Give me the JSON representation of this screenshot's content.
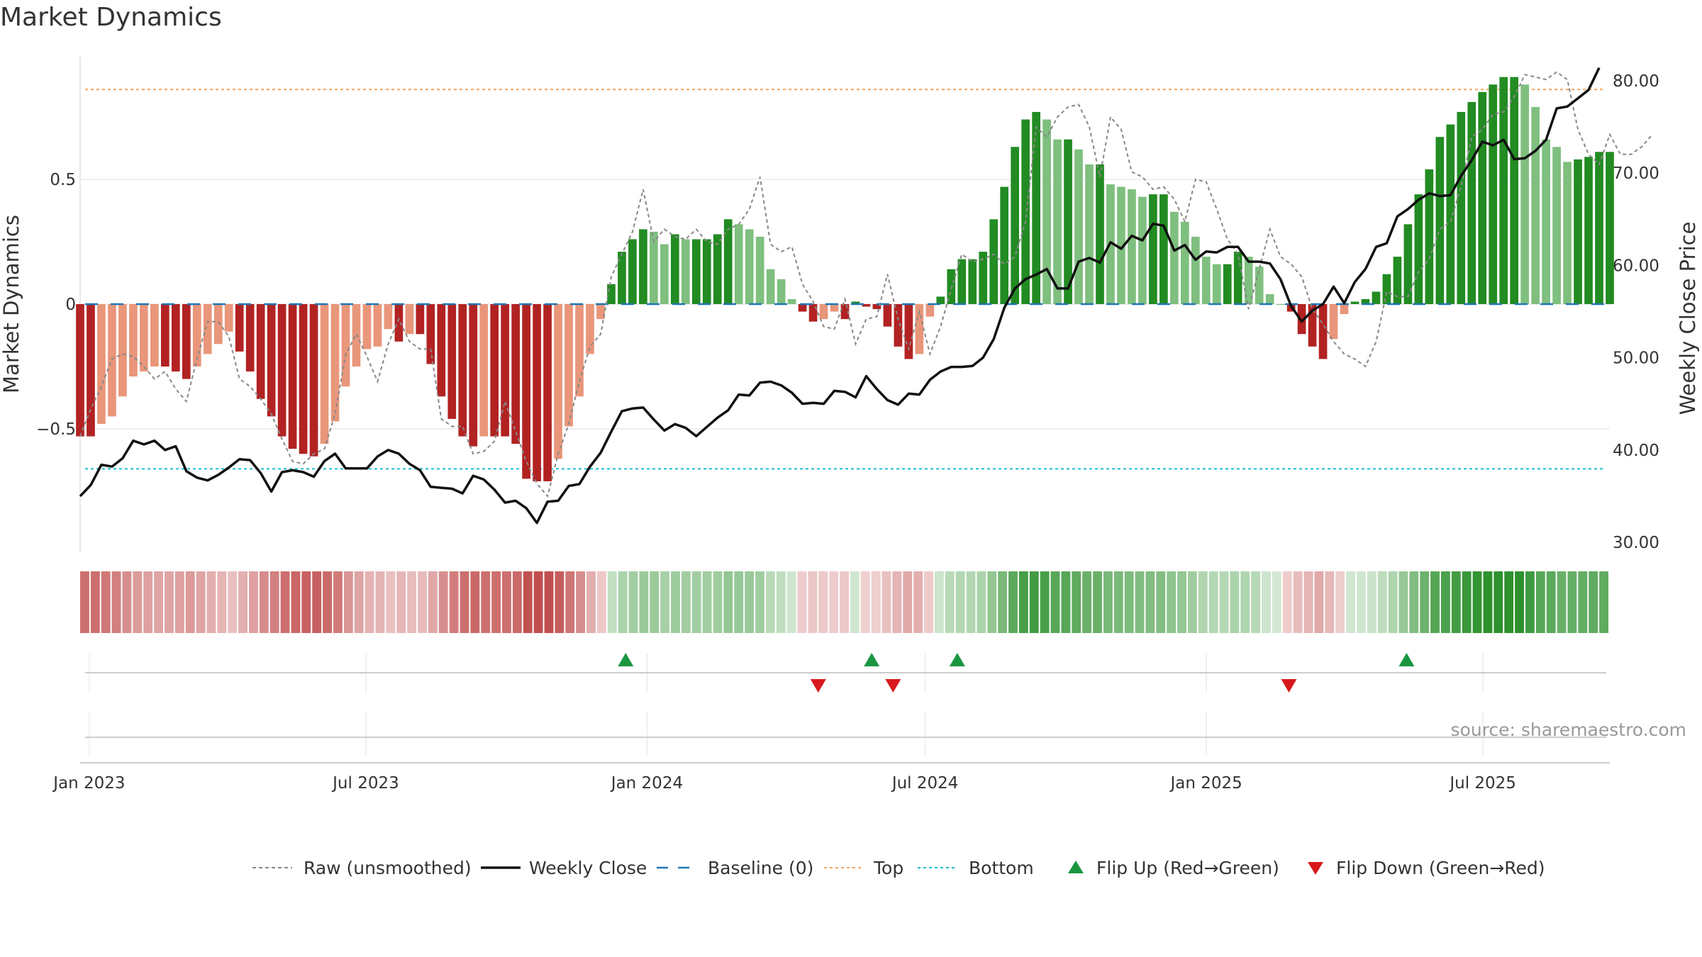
{
  "chart_data": {
    "type": "bar",
    "title": "Market Dynamics",
    "ylabel_left": "Market Dynamics",
    "ylabel_right": "Weekly Close Price",
    "source_text": "source: sharemaestro.com",
    "x_start": "2022-12-26",
    "x_end": "2025-09-22",
    "x_ticks": [
      {
        "label": "Jan 2023",
        "date": "2023-01-01"
      },
      {
        "label": "Jul 2023",
        "date": "2023-07-01"
      },
      {
        "label": "Jan 2024",
        "date": "2024-01-01"
      },
      {
        "label": "Jul 2024",
        "date": "2024-07-01"
      },
      {
        "label": "Jan 2025",
        "date": "2025-01-01"
      },
      {
        "label": "Jul 2025",
        "date": "2025-07-01"
      }
    ],
    "y_left_ticks": [
      {
        "label": "0.5",
        "value": 0.5
      },
      {
        "label": "0",
        "value": 0
      },
      {
        "label": "−0.5",
        "value": -0.5
      }
    ],
    "y_left_range": [
      -0.98,
      0.98
    ],
    "y_right_ticks": [
      {
        "label": "30.00",
        "value": 30
      },
      {
        "label": "40.00",
        "value": 40
      },
      {
        "label": "50.00",
        "value": 50
      },
      {
        "label": "60.00",
        "value": 60
      },
      {
        "label": "70.00",
        "value": 70
      },
      {
        "label": "80.00",
        "value": 80
      }
    ],
    "y_right_range": [
      29.0,
      82.6
    ],
    "top_line": 0.86,
    "bottom_line": -0.66,
    "baseline": 0,
    "smoothed": [
      -0.53,
      -0.53,
      -0.48,
      -0.45,
      -0.37,
      -0.29,
      -0.27,
      -0.25,
      -0.25,
      -0.27,
      -0.3,
      -0.25,
      -0.2,
      -0.16,
      -0.11,
      -0.19,
      -0.27,
      -0.38,
      -0.45,
      -0.53,
      -0.58,
      -0.6,
      -0.61,
      -0.56,
      -0.47,
      -0.33,
      -0.25,
      -0.18,
      -0.17,
      -0.1,
      -0.15,
      -0.12,
      -0.12,
      -0.24,
      -0.37,
      -0.46,
      -0.53,
      -0.57,
      -0.53,
      -0.53,
      -0.53,
      -0.56,
      -0.7,
      -0.71,
      -0.71,
      -0.62,
      -0.49,
      -0.37,
      -0.2,
      -0.06,
      0.08,
      0.21,
      0.26,
      0.3,
      0.29,
      0.24,
      0.28,
      0.26,
      0.26,
      0.26,
      0.28,
      0.34,
      0.32,
      0.3,
      0.27,
      0.14,
      0.1,
      0.02,
      -0.03,
      -0.07,
      -0.06,
      -0.03,
      -0.06,
      0.01,
      -0.01,
      -0.02,
      -0.09,
      -0.17,
      -0.22,
      -0.2,
      -0.05,
      0.03,
      0.14,
      0.18,
      0.18,
      0.21,
      0.34,
      0.47,
      0.63,
      0.74,
      0.77,
      0.74,
      0.66,
      0.66,
      0.62,
      0.56,
      0.56,
      0.48,
      0.47,
      0.46,
      0.43,
      0.44,
      0.44,
      0.37,
      0.33,
      0.27,
      0.19,
      0.16,
      0.16,
      0.21,
      0.19,
      0.15,
      0.04,
      0,
      -0.03,
      -0.12,
      -0.17,
      -0.22,
      -0.14,
      -0.04,
      0.01,
      0.02,
      0.05,
      0.12,
      0.19,
      0.32,
      0.44,
      0.54,
      0.67,
      0.72,
      0.77,
      0.81,
      0.85,
      0.88,
      0.91,
      0.91,
      0.88,
      0.79,
      0.66,
      0.63,
      0.57,
      0.58,
      0.59,
      0.61,
      0.61
    ],
    "raw": [
      -0.53,
      -0.42,
      -0.33,
      -0.22,
      -0.2,
      -0.21,
      -0.25,
      -0.3,
      -0.27,
      -0.34,
      -0.39,
      -0.22,
      -0.07,
      -0.07,
      -0.13,
      -0.3,
      -0.33,
      -0.38,
      -0.44,
      -0.54,
      -0.63,
      -0.64,
      -0.6,
      -0.58,
      -0.44,
      -0.2,
      -0.12,
      -0.21,
      -0.31,
      -0.16,
      -0.06,
      -0.15,
      -0.18,
      -0.18,
      -0.46,
      -0.49,
      -0.49,
      -0.6,
      -0.59,
      -0.55,
      -0.39,
      -0.51,
      -0.63,
      -0.72,
      -0.77,
      -0.6,
      -0.48,
      -0.31,
      -0.17,
      -0.12,
      0.11,
      0.2,
      0.29,
      0.46,
      0.25,
      0.3,
      0.27,
      0.26,
      0.3,
      0.25,
      0.24,
      0.3,
      0.32,
      0.38,
      0.51,
      0.24,
      0.21,
      0.23,
      0.08,
      0.01,
      -0.09,
      -0.1,
      0.02,
      -0.16,
      -0.06,
      -0.05,
      0.12,
      -0.06,
      -0.18,
      -0.03,
      -0.2,
      -0.09,
      0.06,
      0.2,
      0.17,
      0.18,
      0.2,
      0.16,
      0.19,
      0.33,
      0.71,
      0.67,
      0.75,
      0.79,
      0.8,
      0.71,
      0.51,
      0.75,
      0.7,
      0.53,
      0.51,
      0.46,
      0.47,
      0.42,
      0.33,
      0.5,
      0.49,
      0.38,
      0.26,
      0.2,
      -0.02,
      0.14,
      0.3,
      0.19,
      0.16,
      0.11,
      -0.02,
      -0.08,
      -0.15,
      -0.2,
      -0.22,
      -0.25,
      -0.15,
      0.05,
      0.03,
      0.03,
      0.13,
      0.18,
      0.3,
      0.33,
      0.47,
      0.67,
      0.7,
      0.76,
      0.77,
      0.83,
      0.92,
      0.91,
      0.9,
      0.93,
      0.9,
      0.7,
      0.6,
      0.56,
      0.68,
      0.6,
      0.6,
      0.63,
      0.68
    ],
    "close": [
      35.0,
      36.2,
      38.4,
      38.2,
      39.1,
      41.0,
      40.6,
      41.0,
      40.0,
      40.4,
      37.7,
      37.0,
      36.7,
      37.3,
      38.1,
      39.0,
      38.9,
      37.5,
      35.5,
      37.6,
      37.8,
      37.6,
      37.1,
      38.8,
      39.6,
      38.0,
      38.0,
      38.0,
      39.3,
      40.0,
      39.6,
      38.5,
      37.8,
      36.0,
      35.9,
      35.8,
      35.3,
      37.2,
      36.8,
      35.7,
      34.3,
      34.5,
      33.7,
      32.1,
      34.4,
      34.5,
      36.1,
      36.3,
      38.2,
      39.7,
      42.0,
      44.2,
      44.5,
      44.6,
      43.3,
      42.1,
      42.8,
      42.4,
      41.5,
      42.5,
      43.5,
      44.3,
      46.0,
      45.9,
      47.3,
      47.4,
      47.0,
      46.2,
      45.0,
      45.1,
      45.0,
      46.4,
      46.3,
      45.7,
      48.0,
      46.6,
      45.4,
      44.9,
      46.1,
      46.0,
      47.6,
      48.5,
      49.0,
      49.0,
      49.1,
      50.0,
      52.0,
      55.4,
      57.5,
      58.5,
      59.0,
      59.6,
      57.5,
      57.5,
      60.4,
      60.8,
      60.3,
      62.5,
      61.8,
      63.2,
      62.7,
      64.5,
      64.3,
      61.6,
      62.2,
      60.6,
      61.5,
      61.4,
      62.0,
      62.0,
      60.4,
      60.4,
      60.2,
      58.5,
      55.6,
      53.9,
      55.1,
      55.8,
      57.7,
      55.9,
      58.2,
      59.6,
      62.0,
      62.4,
      65.3,
      66.1,
      67.1,
      67.8,
      67.5,
      67.6,
      69.7,
      71.4,
      73.4,
      73.0,
      73.6,
      71.5,
      71.6,
      72.4,
      73.6,
      77.0,
      77.2,
      78.1,
      79.0,
      81.4
    ],
    "flip_up": [
      {
        "date": "2023-12-18"
      },
      {
        "date": "2024-05-27"
      },
      {
        "date": "2024-07-22"
      },
      {
        "date": "2025-05-12"
      }
    ],
    "flip_down": [
      {
        "date": "2024-04-22"
      },
      {
        "date": "2024-06-10"
      },
      {
        "date": "2025-02-24"
      }
    ],
    "legend": [
      {
        "label": "Raw (unsmoothed)",
        "style": "dotted-gray"
      },
      {
        "label": "Weekly Close",
        "style": "solid-black"
      },
      {
        "label": "Baseline (0)",
        "style": "dashed-blue"
      },
      {
        "label": "Top",
        "style": "dotted-orange"
      },
      {
        "label": "Bottom",
        "style": "dotted-cyan"
      },
      {
        "label": "Flip Up (Red→Green)",
        "style": "triangle-up-green"
      },
      {
        "label": "Flip Down (Green→Red)",
        "style": "triangle-down-red"
      }
    ],
    "colors": {
      "strong_red": "#b22222",
      "light_red": "#e9967a",
      "strong_green": "#228b22",
      "light_green": "#7fbf7f",
      "raw": "#888888",
      "close": "#111111",
      "baseline": "#1f77b4",
      "top": "#f4a460",
      "bottom": "#17becf",
      "flip_up": "#1a9641",
      "flip_down": "#d7191c"
    },
    "grid": true
  }
}
